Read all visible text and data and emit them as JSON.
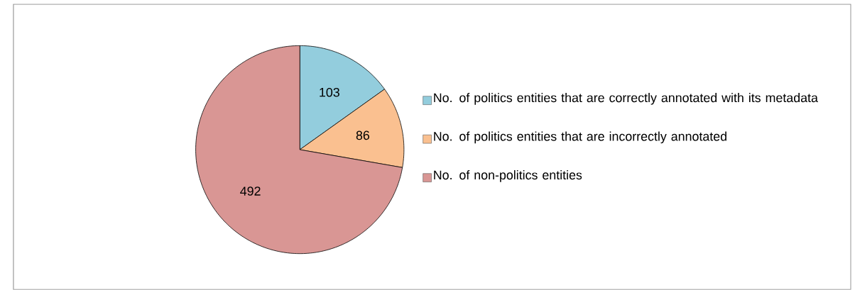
{
  "chart_data": {
    "type": "pie",
    "categories": [
      "No. of politics entities that are correctly annotated with its metadata",
      "No. of politics entities that are incorrectly annotated",
      "No. of non-politics entities"
    ],
    "values": [
      103,
      86,
      492
    ],
    "colors": [
      "#93cddd",
      "#fac090",
      "#d99694"
    ],
    "data_labels": true,
    "legend": "right"
  }
}
